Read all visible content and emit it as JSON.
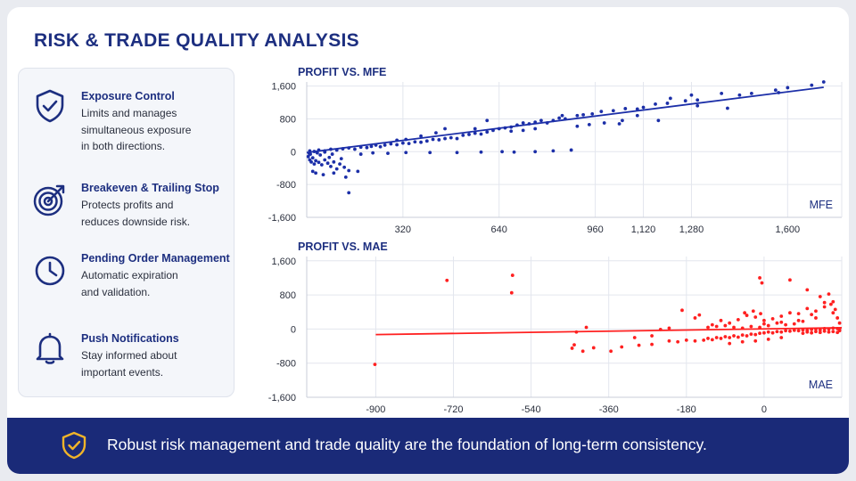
{
  "title": "RISK & TRADE QUALITY ANALYSIS",
  "features": [
    {
      "title": "Exposure Control",
      "desc": [
        "Limits and manages",
        "simultaneous exposure",
        "in both directions."
      ],
      "icon": "shield-check-icon"
    },
    {
      "title": "Breakeven & Trailing Stop",
      "desc": [
        "Protects profits and",
        "reduces downside risk."
      ],
      "icon": "target-arrow-icon"
    },
    {
      "title": "Pending Order Management",
      "desc": [
        "Automatic expiration",
        "and validation."
      ],
      "icon": "clock-icon"
    },
    {
      "title": "Push Notifications",
      "desc": [
        "Stay informed about",
        "important events."
      ],
      "icon": "bell-icon"
    }
  ],
  "footer": {
    "text": "Robust risk management and trade quality are the foundation of long-term consistency.",
    "icon": "shield-check-icon"
  },
  "colors": {
    "navy": "#1d2f80",
    "blue_series": "#1c2fa8",
    "red_series": "#ff2020",
    "footer_bg": "#1a2a78",
    "footer_icon": "#f0b429"
  },
  "chart_data": [
    {
      "type": "scatter",
      "title": "PROFIT VS. MFE",
      "xlabel": "MFE",
      "ylabel": "",
      "xlim": [
        0,
        1780
      ],
      "ylim": [
        -1600,
        1700
      ],
      "xticks": [
        320,
        640,
        960,
        1120,
        1280,
        1600
      ],
      "xtick_labels": [
        "320",
        "640",
        "960",
        "1,120",
        "1,280",
        "1,600"
      ],
      "yticks": [
        1600,
        800,
        0,
        -800,
        -1600
      ],
      "ytick_labels": [
        "1,600",
        "800",
        "0",
        "-800",
        "-1,600"
      ],
      "trendline": {
        "x": [
          0,
          1720
        ],
        "y": [
          -20,
          1570
        ]
      },
      "grid": true,
      "points": [
        [
          5,
          -120
        ],
        [
          10,
          -200
        ],
        [
          15,
          -250
        ],
        [
          20,
          -150
        ],
        [
          25,
          -300
        ],
        [
          30,
          -220
        ],
        [
          40,
          -260
        ],
        [
          50,
          -320
        ],
        [
          60,
          -200
        ],
        [
          70,
          -280
        ],
        [
          80,
          -360
        ],
        [
          90,
          -250
        ],
        [
          100,
          -420
        ],
        [
          110,
          -300
        ],
        [
          125,
          -380
        ],
        [
          140,
          -460
        ],
        [
          20,
          -480
        ],
        [
          30,
          -520
        ],
        [
          55,
          -560
        ],
        [
          90,
          -520
        ],
        [
          130,
          -620
        ],
        [
          170,
          -480
        ],
        [
          12,
          -60
        ],
        [
          35,
          -30
        ],
        [
          60,
          -10
        ],
        [
          85,
          -60
        ],
        [
          8,
          -40
        ],
        [
          45,
          -80
        ],
        [
          75,
          -140
        ],
        [
          115,
          -170
        ],
        [
          10,
          20
        ],
        [
          25,
          5
        ],
        [
          40,
          40
        ],
        [
          60,
          20
        ],
        [
          80,
          60
        ],
        [
          100,
          40
        ],
        [
          120,
          70
        ],
        [
          140,
          90
        ],
        [
          160,
          60
        ],
        [
          180,
          110
        ],
        [
          200,
          100
        ],
        [
          215,
          130
        ],
        [
          230,
          160
        ],
        [
          245,
          120
        ],
        [
          260,
          160
        ],
        [
          280,
          190
        ],
        [
          300,
          170
        ],
        [
          320,
          210
        ],
        [
          340,
          200
        ],
        [
          360,
          240
        ],
        [
          380,
          230
        ],
        [
          400,
          260
        ],
        [
          420,
          300
        ],
        [
          440,
          290
        ],
        [
          460,
          320
        ],
        [
          480,
          340
        ],
        [
          500,
          320
        ],
        [
          520,
          400
        ],
        [
          540,
          420
        ],
        [
          560,
          450
        ],
        [
          580,
          430
        ],
        [
          600,
          480
        ],
        [
          620,
          520
        ],
        [
          640,
          560
        ],
        [
          660,
          580
        ],
        [
          680,
          600
        ],
        [
          700,
          650
        ],
        [
          720,
          700
        ],
        [
          740,
          680
        ],
        [
          760,
          720
        ],
        [
          780,
          760
        ],
        [
          800,
          700
        ],
        [
          820,
          760
        ],
        [
          840,
          820
        ],
        [
          860,
          800
        ],
        [
          900,
          880
        ],
        [
          920,
          900
        ],
        [
          950,
          920
        ],
        [
          980,
          980
        ],
        [
          1020,
          1000
        ],
        [
          1060,
          1050
        ],
        [
          1100,
          1040
        ],
        [
          1120,
          1080
        ],
        [
          1160,
          1160
        ],
        [
          1200,
          1180
        ],
        [
          1260,
          1240
        ],
        [
          1300,
          1260
        ],
        [
          1380,
          1420
        ],
        [
          1440,
          1380
        ],
        [
          1560,
          1500
        ],
        [
          1600,
          1560
        ],
        [
          1680,
          1620
        ],
        [
          1720,
          1700
        ],
        [
          1210,
          1300
        ],
        [
          1280,
          1380
        ],
        [
          1480,
          1420
        ],
        [
          1570,
          1440
        ],
        [
          1300,
          1120
        ],
        [
          1400,
          1060
        ],
        [
          1100,
          880
        ],
        [
          1050,
          760
        ],
        [
          850,
          880
        ],
        [
          720,
          520
        ],
        [
          600,
          760
        ],
        [
          560,
          560
        ],
        [
          460,
          560
        ],
        [
          430,
          460
        ],
        [
          380,
          380
        ],
        [
          330,
          300
        ],
        [
          300,
          280
        ],
        [
          270,
          -40
        ],
        [
          330,
          -20
        ],
        [
          410,
          -20
        ],
        [
          500,
          -20
        ],
        [
          580,
          -10
        ],
        [
          650,
          0
        ],
        [
          690,
          -10
        ],
        [
          760,
          0
        ],
        [
          820,
          20
        ],
        [
          880,
          40
        ],
        [
          680,
          500
        ],
        [
          760,
          560
        ],
        [
          900,
          620
        ],
        [
          940,
          660
        ],
        [
          990,
          700
        ],
        [
          1040,
          680
        ],
        [
          1170,
          760
        ],
        [
          140,
          -1000
        ],
        [
          220,
          -30
        ],
        [
          180,
          -60
        ]
      ]
    },
    {
      "type": "scatter",
      "title": "PROFIT VS. MAE",
      "xlabel": "MAE",
      "ylabel": "",
      "xlim": [
        -1060,
        180
      ],
      "ylim": [
        -1600,
        1700
      ],
      "xticks": [
        -900,
        -720,
        -540,
        -360,
        -180,
        0
      ],
      "xtick_labels": [
        "-900",
        "-720",
        "-540",
        "-360",
        "-180",
        "0"
      ],
      "yticks": [
        1600,
        800,
        0,
        -800,
        -1600
      ],
      "ytick_labels": [
        "1,600",
        "800",
        "0",
        "-800",
        "-1,600"
      ],
      "trendline": {
        "x": [
          -900,
          180
        ],
        "y": [
          -130,
          30
        ]
      },
      "grid": true,
      "points": [
        [
          -902,
          -830
        ],
        [
          -735,
          1140
        ],
        [
          -583,
          1260
        ],
        [
          -585,
          850
        ],
        [
          -435,
          -70
        ],
        [
          -440,
          -370
        ],
        [
          -445,
          -450
        ],
        [
          -420,
          -520
        ],
        [
          -412,
          40
        ],
        [
          -395,
          -440
        ],
        [
          -355,
          -520
        ],
        [
          -290,
          -380
        ],
        [
          -260,
          -360
        ],
        [
          -220,
          -280
        ],
        [
          -200,
          -300
        ],
        [
          -180,
          -260
        ],
        [
          -160,
          -280
        ],
        [
          -140,
          -260
        ],
        [
          -130,
          -220
        ],
        [
          -120,
          -250
        ],
        [
          -110,
          -200
        ],
        [
          -100,
          -220
        ],
        [
          -90,
          -180
        ],
        [
          -80,
          -200
        ],
        [
          -70,
          -160
        ],
        [
          -60,
          -190
        ],
        [
          -50,
          -140
        ],
        [
          -40,
          -160
        ],
        [
          -30,
          -120
        ],
        [
          -20,
          -130
        ],
        [
          -10,
          -100
        ],
        [
          0,
          -90
        ],
        [
          10,
          -70
        ],
        [
          20,
          -90
        ],
        [
          30,
          -60
        ],
        [
          40,
          -70
        ],
        [
          50,
          -40
        ],
        [
          60,
          -50
        ],
        [
          70,
          -30
        ],
        [
          80,
          -40
        ],
        [
          90,
          -20
        ],
        [
          100,
          -30
        ],
        [
          110,
          -10
        ],
        [
          120,
          0
        ],
        [
          130,
          -20
        ],
        [
          140,
          10
        ],
        [
          150,
          0
        ],
        [
          160,
          20
        ],
        [
          170,
          10
        ],
        [
          175,
          -10
        ],
        [
          -190,
          440
        ],
        [
          -160,
          260
        ],
        [
          -150,
          330
        ],
        [
          -120,
          100
        ],
        [
          -100,
          200
        ],
        [
          -80,
          140
        ],
        [
          -60,
          220
        ],
        [
          -40,
          320
        ],
        [
          -20,
          280
        ],
        [
          0,
          200
        ],
        [
          20,
          240
        ],
        [
          40,
          300
        ],
        [
          60,
          380
        ],
        [
          80,
          360
        ],
        [
          100,
          480
        ],
        [
          120,
          420
        ],
        [
          140,
          520
        ],
        [
          160,
          640
        ],
        [
          130,
          760
        ],
        [
          150,
          820
        ],
        [
          110,
          340
        ],
        [
          90,
          180
        ],
        [
          70,
          120
        ],
        [
          50,
          100
        ],
        [
          30,
          140
        ],
        [
          10,
          80
        ],
        [
          -10,
          40
        ],
        [
          -30,
          60
        ],
        [
          -50,
          20
        ],
        [
          -70,
          40
        ],
        [
          -10,
          1200
        ],
        [
          -5,
          1080
        ],
        [
          60,
          1150
        ],
        [
          100,
          920
        ],
        [
          140,
          620
        ],
        [
          160,
          380
        ],
        [
          170,
          260
        ],
        [
          175,
          140
        ],
        [
          165,
          460
        ],
        [
          155,
          580
        ],
        [
          -8,
          360
        ],
        [
          -25,
          420
        ],
        [
          -45,
          380
        ],
        [
          120,
          260
        ],
        [
          80,
          200
        ],
        [
          40,
          160
        ],
        [
          0,
          120
        ],
        [
          -90,
          80
        ],
        [
          -110,
          60
        ],
        [
          -130,
          40
        ],
        [
          160,
          -60
        ],
        [
          170,
          -80
        ],
        [
          175,
          -40
        ],
        [
          150,
          -70
        ],
        [
          140,
          -50
        ],
        [
          130,
          -80
        ],
        [
          120,
          -60
        ],
        [
          110,
          -90
        ],
        [
          100,
          -70
        ],
        [
          90,
          -100
        ],
        [
          -240,
          -10
        ],
        [
          -220,
          20
        ],
        [
          -260,
          -160
        ],
        [
          -300,
          -200
        ],
        [
          -330,
          -420
        ],
        [
          -80,
          -340
        ],
        [
          -50,
          -300
        ],
        [
          -20,
          -280
        ],
        [
          10,
          -240
        ],
        [
          40,
          -200
        ]
      ]
    }
  ]
}
